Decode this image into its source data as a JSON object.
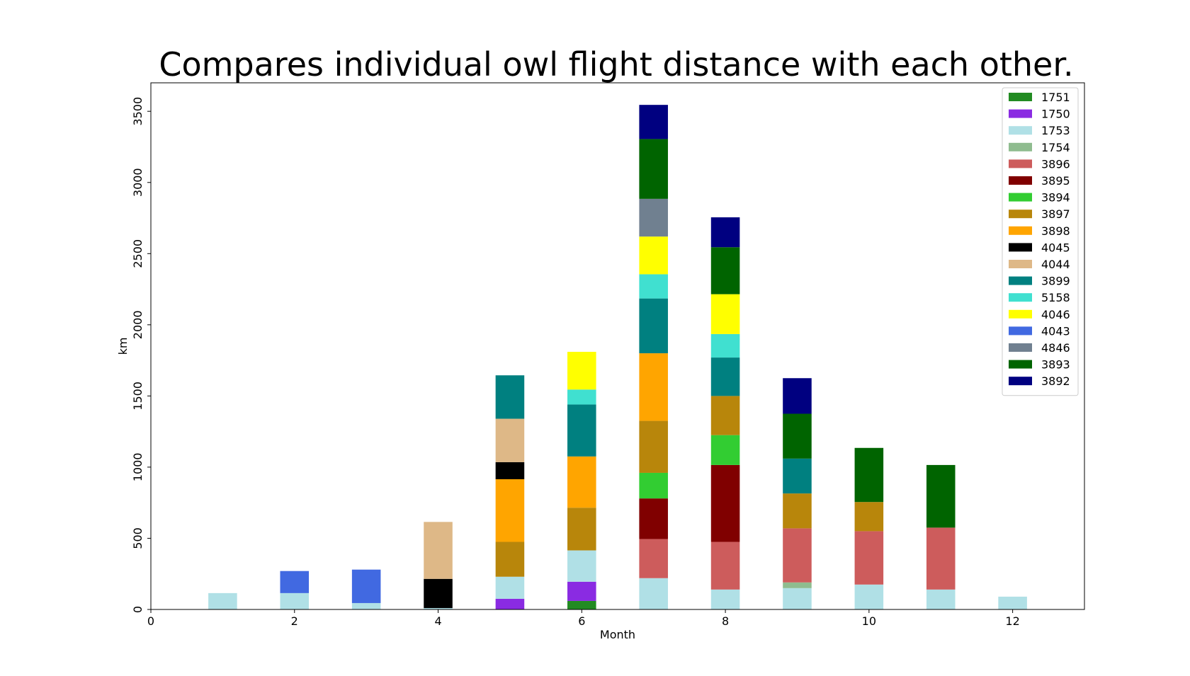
{
  "chart_data": {
    "type": "bar",
    "stacked": true,
    "title": "Compares individual owl flight distance with each other.",
    "xlabel": "Month",
    "ylabel": "km",
    "xlim": [
      0,
      13
    ],
    "ylim": [
      0,
      3700
    ],
    "xticks": [
      0,
      2,
      4,
      6,
      8,
      10,
      12
    ],
    "yticks": [
      0,
      500,
      1000,
      1500,
      2000,
      2500,
      3000,
      3500
    ],
    "grid": false,
    "legend_position": "top-right",
    "categories": [
      1,
      2,
      3,
      4,
      5,
      6,
      7,
      8,
      9,
      10,
      11,
      12
    ],
    "series": [
      {
        "name": "1751",
        "color": "#228b22",
        "values": [
          0,
          0,
          0,
          0,
          0,
          60,
          0,
          0,
          0,
          0,
          0,
          0
        ]
      },
      {
        "name": "1750",
        "color": "#8a2be2",
        "values": [
          0,
          0,
          0,
          0,
          75,
          135,
          0,
          0,
          0,
          0,
          0,
          0
        ]
      },
      {
        "name": "1753",
        "color": "#b0e0e6",
        "values": [
          115,
          115,
          45,
          10,
          155,
          220,
          220,
          140,
          150,
          175,
          140,
          90
        ]
      },
      {
        "name": "1754",
        "color": "#8fbc8f",
        "values": [
          0,
          0,
          0,
          0,
          0,
          0,
          0,
          0,
          40,
          0,
          0,
          0
        ]
      },
      {
        "name": "3896",
        "color": "#cd5c5c",
        "values": [
          0,
          0,
          0,
          0,
          0,
          0,
          275,
          335,
          380,
          375,
          435,
          0
        ]
      },
      {
        "name": "3895",
        "color": "#800000",
        "values": [
          0,
          0,
          0,
          0,
          0,
          0,
          285,
          540,
          0,
          0,
          0,
          0
        ]
      },
      {
        "name": "3894",
        "color": "#32cd32",
        "values": [
          0,
          0,
          0,
          0,
          0,
          0,
          180,
          210,
          0,
          0,
          0,
          0
        ]
      },
      {
        "name": "3897",
        "color": "#b8860b",
        "values": [
          0,
          0,
          0,
          0,
          245,
          300,
          365,
          275,
          245,
          205,
          0,
          0
        ]
      },
      {
        "name": "3898",
        "color": "#ffa500",
        "values": [
          0,
          0,
          0,
          0,
          440,
          360,
          475,
          0,
          0,
          0,
          0,
          0
        ]
      },
      {
        "name": "4045",
        "color": "#000000",
        "values": [
          0,
          0,
          0,
          205,
          120,
          0,
          0,
          0,
          0,
          0,
          0,
          0
        ]
      },
      {
        "name": "4044",
        "color": "#deb887",
        "values": [
          0,
          0,
          0,
          400,
          305,
          0,
          0,
          0,
          0,
          0,
          0,
          0
        ]
      },
      {
        "name": "3899",
        "color": "#008080",
        "values": [
          0,
          0,
          0,
          0,
          305,
          365,
          385,
          270,
          245,
          0,
          0,
          0
        ]
      },
      {
        "name": "5158",
        "color": "#40e0d0",
        "values": [
          0,
          0,
          0,
          0,
          0,
          105,
          170,
          165,
          0,
          0,
          0,
          0
        ]
      },
      {
        "name": "4046",
        "color": "#ffff00",
        "values": [
          0,
          0,
          0,
          0,
          0,
          265,
          265,
          280,
          0,
          0,
          0,
          0
        ]
      },
      {
        "name": "4043",
        "color": "#4169e1",
        "values": [
          0,
          155,
          235,
          0,
          0,
          0,
          0,
          0,
          0,
          0,
          0,
          0
        ]
      },
      {
        "name": "4846",
        "color": "#708090",
        "values": [
          0,
          0,
          0,
          0,
          0,
          0,
          265,
          0,
          0,
          0,
          0,
          0
        ]
      },
      {
        "name": "3893",
        "color": "#006400",
        "values": [
          0,
          0,
          0,
          0,
          0,
          0,
          420,
          330,
          315,
          380,
          440,
          0
        ]
      },
      {
        "name": "3892",
        "color": "#000080",
        "values": [
          0,
          0,
          0,
          0,
          0,
          0,
          240,
          210,
          250,
          0,
          0,
          0
        ]
      }
    ]
  }
}
